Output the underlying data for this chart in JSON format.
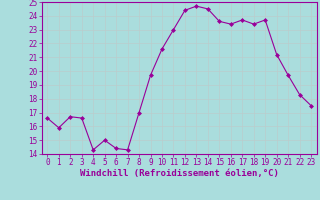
{
  "x": [
    0,
    1,
    2,
    3,
    4,
    5,
    6,
    7,
    8,
    9,
    10,
    11,
    12,
    13,
    14,
    15,
    16,
    17,
    18,
    19,
    20,
    21,
    22,
    23
  ],
  "y": [
    16.6,
    15.9,
    16.7,
    16.6,
    14.3,
    15.0,
    14.4,
    14.3,
    17.0,
    19.7,
    21.6,
    23.0,
    24.4,
    24.7,
    24.5,
    23.6,
    23.4,
    23.7,
    23.4,
    23.7,
    21.2,
    19.7,
    18.3,
    17.5
  ],
  "line_color": "#990099",
  "marker": "D",
  "marker_size": 2,
  "bg_color": "#aadddd",
  "grid_color": "#bbcccc",
  "xlabel": "Windchill (Refroidissement éolien,°C)",
  "xlabel_color": "#990099",
  "ylim": [
    14,
    25
  ],
  "xlim_min": -0.5,
  "xlim_max": 23.5,
  "yticks": [
    14,
    15,
    16,
    17,
    18,
    19,
    20,
    21,
    22,
    23,
    24,
    25
  ],
  "xticks": [
    0,
    1,
    2,
    3,
    4,
    5,
    6,
    7,
    8,
    9,
    10,
    11,
    12,
    13,
    14,
    15,
    16,
    17,
    18,
    19,
    20,
    21,
    22,
    23
  ],
  "tick_fontsize": 5.5,
  "xlabel_fontsize": 6.5
}
